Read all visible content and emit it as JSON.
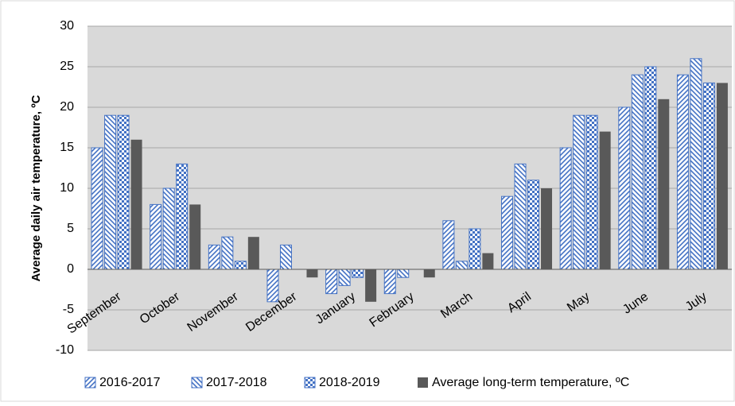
{
  "chart_data": {
    "type": "bar",
    "y_label": "Average daily air temperature, ºC",
    "categories": [
      "September",
      "October",
      "November",
      "December",
      "January",
      "February",
      "March",
      "April",
      "May",
      "June",
      "July"
    ],
    "series": [
      {
        "name": "2016-2017",
        "color": "#4472c4",
        "pattern": "forward-diagonal",
        "values": [
          15,
          8,
          3,
          -4,
          -3,
          -3,
          6,
          9,
          15,
          20,
          24
        ]
      },
      {
        "name": "2017-2018",
        "color": "#4472c4",
        "pattern": "backward-diagonal",
        "values": [
          19,
          10,
          4,
          3,
          -2,
          -1,
          1,
          13,
          19,
          24,
          26
        ]
      },
      {
        "name": "2018-2019",
        "color": "#4472c4",
        "pattern": "checker",
        "values": [
          19,
          13,
          1,
          0,
          -1,
          0,
          5,
          11,
          19,
          25,
          23
        ]
      },
      {
        "name": "Average long-term temperature, ºC",
        "color": "#595959",
        "pattern": "solid",
        "values": [
          16,
          8,
          4,
          -1,
          -4,
          -1,
          2,
          10,
          17,
          21,
          23
        ]
      }
    ],
    "ylim": [
      -10,
      30
    ],
    "yticks": [
      -10,
      -5,
      0,
      5,
      10,
      15,
      20,
      25,
      30
    ],
    "grid": true,
    "legend": "bottom"
  }
}
